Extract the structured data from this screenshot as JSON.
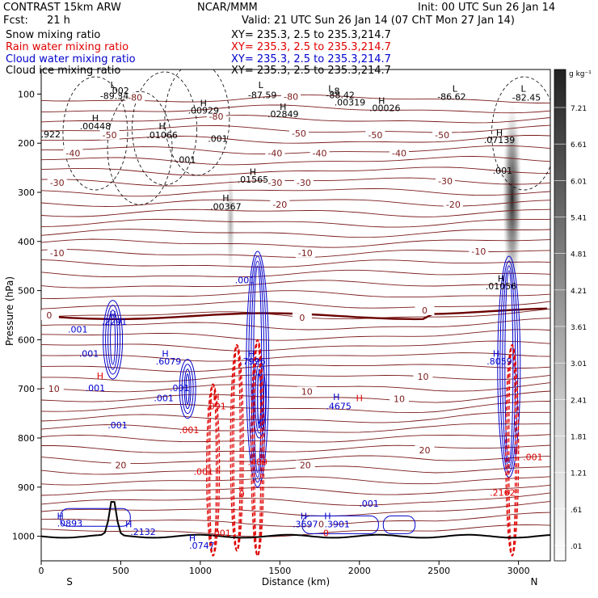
{
  "header": {
    "model": "CONTRAST 15km ARW",
    "center": "NCAR/MMM",
    "init": "Init: 00 UTC Sun 26 Jan 14",
    "fcst_label": "Fcst:",
    "fcst_value": "21 h",
    "valid": "Valid: 21 UTC Sun 26 Jan 14 (07 ChT Mon 27 Jan 14)"
  },
  "fields": [
    {
      "name": "Snow mixing ratio",
      "color": "#000000",
      "xy": "XY=  235.3,   2.5 to 235.3,214.7"
    },
    {
      "name": "Rain water mixing ratio",
      "color": "#e00000",
      "xy": "XY=  235.3,   2.5 to 235.3,214.7"
    },
    {
      "name": "Cloud water mixing ratio",
      "color": "#0000cc",
      "xy": "XY=  235.3,   2.5 to 235.3,214.7"
    },
    {
      "name": "Cloud ice mixing ratio",
      "color": "#000000",
      "xy": "XY=  235.3,   2.5 to 235.3,214.7"
    }
  ],
  "chart_data": {
    "type": "heatmap",
    "xlabel": "Distance (km)",
    "ylabel": "Pressure (hPa)",
    "xlim": [
      0,
      3200
    ],
    "ylim": [
      1050,
      50
    ],
    "x_ticks": [
      "0",
      "500",
      "1000",
      "1500",
      "2000",
      "2500",
      "3000"
    ],
    "y_ticks": [
      "100",
      "200",
      "300",
      "400",
      "500",
      "600",
      "700",
      "800",
      "900",
      "1000"
    ],
    "x_end_labels": {
      "left": "S",
      "right": "N"
    },
    "colorbar": {
      "unit": "g kg⁻¹",
      "labels": [
        "7.21",
        "6.61",
        "6.01",
        "5.41",
        "4.81",
        "4.21",
        "3.61",
        "3.01",
        "2.41",
        "1.81",
        "1.21",
        ".61",
        ".01"
      ]
    },
    "snow_columns": [
      {
        "x": 2960,
        "p_top": 120,
        "p_bottom": 500,
        "peak": 7.2
      },
      {
        "x": 1190,
        "p_top": 250,
        "p_bottom": 470,
        "peak": 1.0
      }
    ],
    "temperature_labels": [
      {
        "x": 1570,
        "p": 110,
        "v": "-80"
      },
      {
        "x": 590,
        "p": 112,
        "v": "-80"
      },
      {
        "x": 1100,
        "p": 150,
        "v": "-80"
      },
      {
        "x": 1620,
        "p": 185,
        "v": "-50"
      },
      {
        "x": 430,
        "p": 188,
        "v": "-50"
      },
      {
        "x": 2100,
        "p": 188,
        "v": "-50"
      },
      {
        "x": 2520,
        "p": 188,
        "v": "-50"
      },
      {
        "x": 200,
        "p": 225,
        "v": "-40"
      },
      {
        "x": 1470,
        "p": 225,
        "v": "-40"
      },
      {
        "x": 1750,
        "p": 225,
        "v": "-40"
      },
      {
        "x": 2250,
        "p": 225,
        "v": "-40"
      },
      {
        "x": 100,
        "p": 285,
        "v": "-30"
      },
      {
        "x": 1470,
        "p": 285,
        "v": "-30"
      },
      {
        "x": 1650,
        "p": 285,
        "v": "-30"
      },
      {
        "x": 2540,
        "p": 282,
        "v": "-30"
      },
      {
        "x": 1500,
        "p": 330,
        "v": "-20"
      },
      {
        "x": 2590,
        "p": 330,
        "v": "-20"
      },
      {
        "x": 1660,
        "p": 428,
        "v": "-10"
      },
      {
        "x": 100,
        "p": 428,
        "v": "-10"
      },
      {
        "x": 2750,
        "p": 425,
        "v": "-10"
      },
      {
        "x": 50,
        "p": 555,
        "v": "0"
      },
      {
        "x": 1640,
        "p": 560,
        "v": "0"
      },
      {
        "x": 2410,
        "p": 545,
        "v": "0"
      },
      {
        "x": 2400,
        "p": 680,
        "v": "10"
      },
      {
        "x": 80,
        "p": 705,
        "v": "10"
      },
      {
        "x": 1670,
        "p": 710,
        "v": "10"
      },
      {
        "x": 2250,
        "p": 725,
        "v": "10"
      },
      {
        "x": 500,
        "p": 860,
        "v": "20"
      },
      {
        "x": 1660,
        "p": 860,
        "v": "20"
      },
      {
        "x": 2410,
        "p": 830,
        "v": "20"
      },
      {
        "x": 1760,
        "p": 980,
        "v": "0"
      }
    ],
    "field_labels": [
      {
        "x": 450,
        "p": 88,
        "v": "L",
        "c": "black"
      },
      {
        "x": 490,
        "p": 99,
        "v": ".002",
        "c": "black"
      },
      {
        "x": 460,
        "p": 110,
        "v": "-89.34",
        "c": "black"
      },
      {
        "x": 1380,
        "p": 88,
        "v": "L",
        "c": "black"
      },
      {
        "x": 1390,
        "p": 108,
        "v": "-87.59",
        "c": "black"
      },
      {
        "x": 1820,
        "p": 95,
        "v": "L",
        "c": "black"
      },
      {
        "x": 1850,
        "p": 100,
        "v": ".8",
        "c": "black"
      },
      {
        "x": 1880,
        "p": 108,
        "v": "-88.42",
        "c": "black"
      },
      {
        "x": 1940,
        "p": 123,
        "v": ".00319",
        "c": "black"
      },
      {
        "x": 2140,
        "p": 120,
        "v": "H",
        "c": "black"
      },
      {
        "x": 2160,
        "p": 135,
        "v": ".00026",
        "c": "black"
      },
      {
        "x": 2600,
        "p": 95,
        "v": "L",
        "c": "black"
      },
      {
        "x": 2580,
        "p": 112,
        "v": "-86.62",
        "c": "black"
      },
      {
        "x": 3030,
        "p": 95,
        "v": "L",
        "c": "black"
      },
      {
        "x": 3050,
        "p": 113,
        "v": "-82.45",
        "c": "black"
      },
      {
        "x": 1520,
        "p": 132,
        "v": "H",
        "c": "black"
      },
      {
        "x": 1520,
        "p": 147,
        "v": ".02849",
        "c": "black"
      },
      {
        "x": 1020,
        "p": 125,
        "v": "H",
        "c": "black"
      },
      {
        "x": 1020,
        "p": 140,
        "v": ".00929",
        "c": "black"
      },
      {
        "x": 340,
        "p": 155,
        "v": "H",
        "c": "black"
      },
      {
        "x": 340,
        "p": 172,
        "v": ".00448",
        "c": "black"
      },
      {
        "x": 760,
        "p": 172,
        "v": "H",
        "c": "black"
      },
      {
        "x": 760,
        "p": 190,
        "v": ".01066",
        "c": "black"
      },
      {
        "x": 60,
        "p": 188,
        "v": ".922",
        "c": "black"
      },
      {
        "x": 1110,
        "p": 197,
        "v": ".001",
        "c": "black"
      },
      {
        "x": 910,
        "p": 240,
        "v": ".001",
        "c": "black"
      },
      {
        "x": 1330,
        "p": 265,
        "v": "H",
        "c": "black"
      },
      {
        "x": 1330,
        "p": 280,
        "v": ".01565",
        "c": "black"
      },
      {
        "x": 1160,
        "p": 318,
        "v": "H",
        "c": "black"
      },
      {
        "x": 1160,
        "p": 335,
        "v": ".00367",
        "c": "black"
      },
      {
        "x": 2880,
        "p": 185,
        "v": "H",
        "c": "black"
      },
      {
        "x": 2880,
        "p": 200,
        "v": ".07139",
        "c": "black"
      },
      {
        "x": 2900,
        "p": 262,
        "v": ".001",
        "c": "black"
      },
      {
        "x": 2890,
        "p": 482,
        "v": "H",
        "c": "black"
      },
      {
        "x": 2890,
        "p": 497,
        "v": ".01056",
        "c": "black"
      },
      {
        "x": 1280,
        "p": 485,
        "v": ".001",
        "c": "blue"
      },
      {
        "x": 450,
        "p": 555,
        "v": "H",
        "c": "blue"
      },
      {
        "x": 460,
        "p": 570,
        "v": ".2291",
        "c": "blue"
      },
      {
        "x": 230,
        "p": 585,
        "v": ".001",
        "c": "blue"
      },
      {
        "x": 300,
        "p": 635,
        "v": ".001",
        "c": "blue"
      },
      {
        "x": 780,
        "p": 635,
        "v": "H",
        "c": "blue"
      },
      {
        "x": 800,
        "p": 650,
        "v": ".6079",
        "c": "blue"
      },
      {
        "x": 1320,
        "p": 635,
        "v": "H",
        "c": "blue"
      },
      {
        "x": 1330,
        "p": 650,
        "v": ".7996",
        "c": "blue"
      },
      {
        "x": 2860,
        "p": 635,
        "v": "H",
        "c": "blue"
      },
      {
        "x": 2880,
        "p": 650,
        "v": ".8059",
        "c": "blue"
      },
      {
        "x": 370,
        "p": 680,
        "v": "H",
        "c": "red"
      },
      {
        "x": 340,
        "p": 705,
        "v": ".001",
        "c": "blue"
      },
      {
        "x": 870,
        "p": 705,
        "v": ".001",
        "c": "blue"
      },
      {
        "x": 770,
        "p": 725,
        "v": ".001",
        "c": "blue"
      },
      {
        "x": 1100,
        "p": 723,
        "v": "H",
        "c": "red"
      },
      {
        "x": 1100,
        "p": 742,
        "v": ".091",
        "c": "red"
      },
      {
        "x": 480,
        "p": 780,
        "v": ".001",
        "c": "blue"
      },
      {
        "x": 930,
        "p": 790,
        "v": ".001",
        "c": "red"
      },
      {
        "x": 1855,
        "p": 723,
        "v": "H",
        "c": "blue"
      },
      {
        "x": 1870,
        "p": 742,
        "v": ".4675",
        "c": "blue"
      },
      {
        "x": 2000,
        "p": 725,
        "v": "H",
        "c": "red"
      },
      {
        "x": 3090,
        "p": 845,
        "v": ".001",
        "c": "red"
      },
      {
        "x": 1360,
        "p": 855,
        "v": ".489",
        "c": "red"
      },
      {
        "x": 1020,
        "p": 875,
        "v": ".001",
        "c": "red"
      },
      {
        "x": 1260,
        "p": 920,
        "v": "0",
        "c": "red"
      },
      {
        "x": 2900,
        "p": 918,
        "v": ".2162",
        "c": "red"
      },
      {
        "x": 120,
        "p": 965,
        "v": "H",
        "c": "blue"
      },
      {
        "x": 180,
        "p": 980,
        "v": ".0893",
        "c": "blue"
      },
      {
        "x": 550,
        "p": 982,
        "v": "H",
        "c": "blue"
      },
      {
        "x": 640,
        "p": 997,
        "v": ".2132",
        "c": "blue"
      },
      {
        "x": 950,
        "p": 1010,
        "v": "H",
        "c": "blue"
      },
      {
        "x": 1010,
        "p": 1025,
        "v": ".0747",
        "c": "blue"
      },
      {
        "x": 1130,
        "p": 1000,
        "v": ".001",
        "c": "red"
      },
      {
        "x": 1650,
        "p": 965,
        "v": "H",
        "c": "blue"
      },
      {
        "x": 1660,
        "p": 982,
        "v": ".3697",
        "c": "blue"
      },
      {
        "x": 1800,
        "p": 965,
        "v": "H",
        "c": "blue"
      },
      {
        "x": 1860,
        "p": 982,
        "v": ".3901",
        "c": "blue"
      },
      {
        "x": 2060,
        "p": 940,
        "v": ".001",
        "c": "blue"
      },
      {
        "x": 1790,
        "p": 1000,
        "v": "0",
        "c": "red"
      }
    ]
  }
}
